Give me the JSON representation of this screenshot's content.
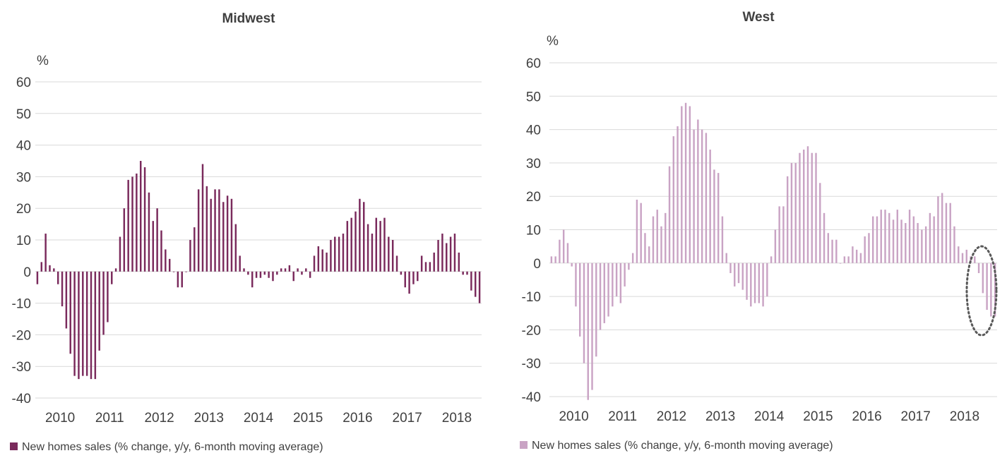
{
  "chart_data": [
    {
      "type": "bar",
      "title": "Midwest",
      "unit": "%",
      "ylim": [
        -40,
        60
      ],
      "yticks": [
        60,
        50,
        40,
        30,
        20,
        10,
        0,
        -10,
        -20,
        -30,
        -40
      ],
      "x_labels": [
        "2010",
        "2011",
        "2012",
        "2013",
        "2014",
        "2015",
        "2016",
        "2017",
        "2018"
      ],
      "x_start": "2010-01",
      "grid": true,
      "legend_position": "bottom-left",
      "color": "#7a2a5c",
      "series": [
        {
          "name": "New homes sales (% change, y/y, 6-month moving average)",
          "values": [
            -4,
            3,
            12,
            2,
            1,
            -4,
            -11,
            -18,
            -26,
            -33,
            -34,
            -33,
            -33,
            -34,
            -34,
            -25,
            -20,
            -16,
            -4,
            1,
            11,
            20,
            29,
            30,
            31,
            35,
            33,
            25,
            16,
            20,
            13,
            7,
            4,
            0,
            -5,
            -5,
            0,
            10,
            14,
            26,
            34,
            27,
            23,
            26,
            26,
            22,
            24,
            23,
            15,
            5,
            1,
            -1,
            -5,
            -2,
            -2,
            -1,
            -2,
            -3,
            -1,
            1,
            1,
            2,
            -3,
            1,
            -1,
            1,
            -2,
            5,
            8,
            7,
            6,
            10,
            11,
            11,
            12,
            16,
            17,
            19,
            23,
            22,
            15,
            12,
            17,
            16,
            17,
            11,
            10,
            5,
            -1,
            -5,
            -7,
            -4,
            -3,
            5,
            3,
            3,
            6,
            10,
            12,
            9,
            11,
            12,
            6,
            -1,
            -1,
            -6,
            -8,
            -10
          ]
        }
      ]
    },
    {
      "type": "bar",
      "title": "West",
      "unit": "%",
      "ylim": [
        -40,
        60
      ],
      "yticks": [
        60,
        50,
        40,
        30,
        20,
        10,
        0,
        -10,
        -20,
        -30,
        -40
      ],
      "x_labels": [
        "2010",
        "2011",
        "2012",
        "2013",
        "2014",
        "2015",
        "2016",
        "2017",
        "2018"
      ],
      "x_start": "2010-01",
      "grid": true,
      "legend_position": "bottom-left",
      "color": "#c9a3c4",
      "highlight": "dotted ellipse around latest values",
      "series": [
        {
          "name": "New homes sales (% change, y/y, 6-month moving average)",
          "values": [
            2,
            2,
            7,
            10,
            6,
            -1,
            -13,
            -22,
            -30,
            -41,
            -38,
            -28,
            -20,
            -18,
            -16,
            -13,
            -10,
            -12,
            -7,
            -2,
            3,
            19,
            18,
            9,
            5,
            14,
            16,
            11,
            15,
            29,
            38,
            41,
            47,
            48,
            47,
            40,
            43,
            40,
            39,
            34,
            28,
            27,
            14,
            3,
            -3,
            -7,
            -6,
            -8,
            -11,
            -13,
            -12,
            -12,
            -13,
            -10,
            2,
            10,
            17,
            17,
            26,
            30,
            30,
            33,
            34,
            35,
            33,
            33,
            24,
            15,
            9,
            7,
            7,
            0,
            2,
            2,
            5,
            4,
            3,
            8,
            9,
            14,
            14,
            16,
            16,
            15,
            13,
            16,
            13,
            12,
            16,
            14,
            12,
            10,
            11,
            15,
            14,
            20,
            21,
            18,
            18,
            11,
            5,
            3,
            4,
            2,
            2,
            -3,
            -9,
            -14,
            -16,
            -16
          ]
        }
      ]
    }
  ]
}
